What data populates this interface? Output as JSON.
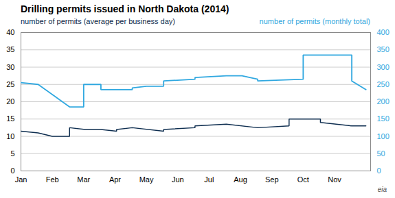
{
  "chart_data": {
    "type": "line",
    "title": "Drilling permits issued in North Dakota (2014)",
    "ylabel": "number of permits (average  per business day)",
    "y2label": "number of permits (monthly total)",
    "annotations": [
      "eia"
    ],
    "xlim": [
      0,
      11.15
    ],
    "xticks": [
      {
        "value": 0,
        "label": "Jan"
      },
      {
        "value": 1,
        "label": "Feb"
      },
      {
        "value": 2,
        "label": "Mar"
      },
      {
        "value": 3,
        "label": "Apr"
      },
      {
        "value": 4,
        "label": "May"
      },
      {
        "value": 5,
        "label": "Jun"
      },
      {
        "value": 6,
        "label": "Jul"
      },
      {
        "value": 7,
        "label": "Aug"
      },
      {
        "value": 8,
        "label": "Sep"
      },
      {
        "value": 9,
        "label": "Oct"
      },
      {
        "value": 10,
        "label": "Nov"
      }
    ],
    "ylim": [
      0,
      40
    ],
    "yticks": [
      0,
      5,
      10,
      15,
      20,
      25,
      30,
      35,
      40
    ],
    "y2lim": [
      0,
      400
    ],
    "y2ticks": [
      0,
      50,
      100,
      150,
      200,
      250,
      300,
      350,
      400
    ],
    "grid": true,
    "series": [
      {
        "color": "#0d2d4f",
        "x": [
          0.0,
          0.55,
          1.0,
          1.55,
          1.55,
          2.05,
          2.55,
          3.05,
          3.05,
          3.55,
          4.55,
          4.55,
          5.55,
          5.55,
          6.55,
          7.55,
          7.55,
          8.55,
          8.55,
          9.55,
          9.55,
          10.55,
          11.0
        ],
        "values": [
          11.5,
          11.0,
          10.0,
          10.0,
          12.5,
          12.0,
          12.0,
          11.5,
          12.0,
          12.5,
          11.5,
          12.0,
          12.5,
          13.0,
          13.5,
          12.5,
          12.5,
          13.0,
          15.0,
          15.0,
          14.0,
          13.0,
          13.0
        ]
      },
      {
        "color": "#30a8e0",
        "axis": "y2",
        "x": [
          0.0,
          0.55,
          1.55,
          2.0,
          2.0,
          2.55,
          2.55,
          3.55,
          3.55,
          4.0,
          4.55,
          4.55,
          5.55,
          5.55,
          6.55,
          7.05,
          7.55,
          7.55,
          9.0,
          9.0,
          10.55,
          10.55,
          11.0,
          11.0
        ],
        "values": [
          255,
          250,
          185,
          185,
          250,
          250,
          235,
          235,
          240,
          245,
          245,
          260,
          265,
          270,
          275,
          275,
          265,
          260,
          265,
          335,
          335,
          260,
          235,
          235
        ]
      }
    ]
  }
}
